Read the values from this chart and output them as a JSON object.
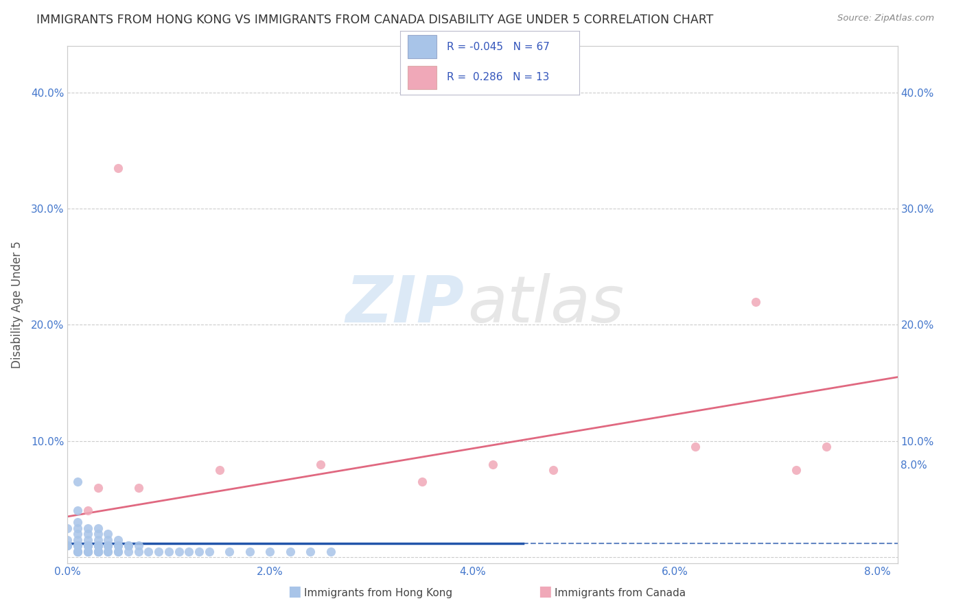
{
  "title": "IMMIGRANTS FROM HONG KONG VS IMMIGRANTS FROM CANADA DISABILITY AGE UNDER 5 CORRELATION CHART",
  "source": "Source: ZipAtlas.com",
  "ylabel": "Disability Age Under 5",
  "hk_R": -0.045,
  "hk_N": 67,
  "ca_R": 0.286,
  "ca_N": 13,
  "hk_color": "#a8c4e8",
  "ca_color": "#f0a8b8",
  "ca_line_color": "#e06880",
  "hk_line_color": "#2255aa",
  "xlim": [
    0.0,
    0.082
  ],
  "ylim": [
    -0.005,
    0.44
  ],
  "x_ticks": [
    0.0,
    0.02,
    0.04,
    0.06,
    0.08
  ],
  "y_ticks_left": [
    0.0,
    0.1,
    0.2,
    0.3,
    0.4
  ],
  "y_ticks_right": [
    0.08,
    0.1,
    0.2,
    0.3,
    0.4
  ],
  "tick_color": "#4477cc",
  "grid_color": "#cccccc",
  "title_color": "#333333",
  "source_color": "#888888",
  "hk_scatter_x": [
    0.0,
    0.0,
    0.0,
    0.0,
    0.0,
    0.001,
    0.001,
    0.001,
    0.001,
    0.001,
    0.001,
    0.001,
    0.001,
    0.001,
    0.001,
    0.001,
    0.002,
    0.002,
    0.002,
    0.002,
    0.002,
    0.002,
    0.002,
    0.002,
    0.002,
    0.002,
    0.003,
    0.003,
    0.003,
    0.003,
    0.003,
    0.003,
    0.003,
    0.003,
    0.003,
    0.003,
    0.003,
    0.004,
    0.004,
    0.004,
    0.004,
    0.004,
    0.004,
    0.004,
    0.005,
    0.005,
    0.005,
    0.005,
    0.005,
    0.006,
    0.006,
    0.006,
    0.007,
    0.007,
    0.008,
    0.009,
    0.01,
    0.011,
    0.012,
    0.013,
    0.014,
    0.016,
    0.018,
    0.02,
    0.022,
    0.024,
    0.026
  ],
  "hk_scatter_y": [
    0.01,
    0.01,
    0.01,
    0.015,
    0.025,
    0.005,
    0.005,
    0.005,
    0.01,
    0.01,
    0.015,
    0.02,
    0.025,
    0.03,
    0.04,
    0.065,
    0.005,
    0.005,
    0.005,
    0.01,
    0.01,
    0.01,
    0.01,
    0.015,
    0.02,
    0.025,
    0.005,
    0.005,
    0.005,
    0.005,
    0.01,
    0.01,
    0.01,
    0.01,
    0.015,
    0.02,
    0.025,
    0.005,
    0.005,
    0.01,
    0.01,
    0.01,
    0.015,
    0.02,
    0.005,
    0.005,
    0.01,
    0.01,
    0.015,
    0.005,
    0.01,
    0.01,
    0.005,
    0.01,
    0.005,
    0.005,
    0.005,
    0.005,
    0.005,
    0.005,
    0.005,
    0.005,
    0.005,
    0.005,
    0.005,
    0.005,
    0.005
  ],
  "ca_scatter_x": [
    0.002,
    0.003,
    0.005,
    0.007,
    0.015,
    0.025,
    0.035,
    0.042,
    0.048,
    0.062,
    0.068,
    0.072,
    0.075
  ],
  "ca_scatter_y": [
    0.04,
    0.06,
    0.335,
    0.06,
    0.075,
    0.08,
    0.065,
    0.08,
    0.075,
    0.095,
    0.22,
    0.075,
    0.095
  ],
  "ca_line_x0": 0.0,
  "ca_line_y0": 0.035,
  "ca_line_x1": 0.082,
  "ca_line_y1": 0.155,
  "hk_line_x0": 0.0,
  "hk_line_y0": 0.012,
  "hk_line_x1": 0.082,
  "hk_line_y1": 0.012,
  "hk_line_solid_end": 0.045,
  "watermark_zip": "ZIP",
  "watermark_atlas": "atlas",
  "legend_hk_label": "Immigrants from Hong Kong",
  "legend_ca_label": "Immigrants from Canada"
}
